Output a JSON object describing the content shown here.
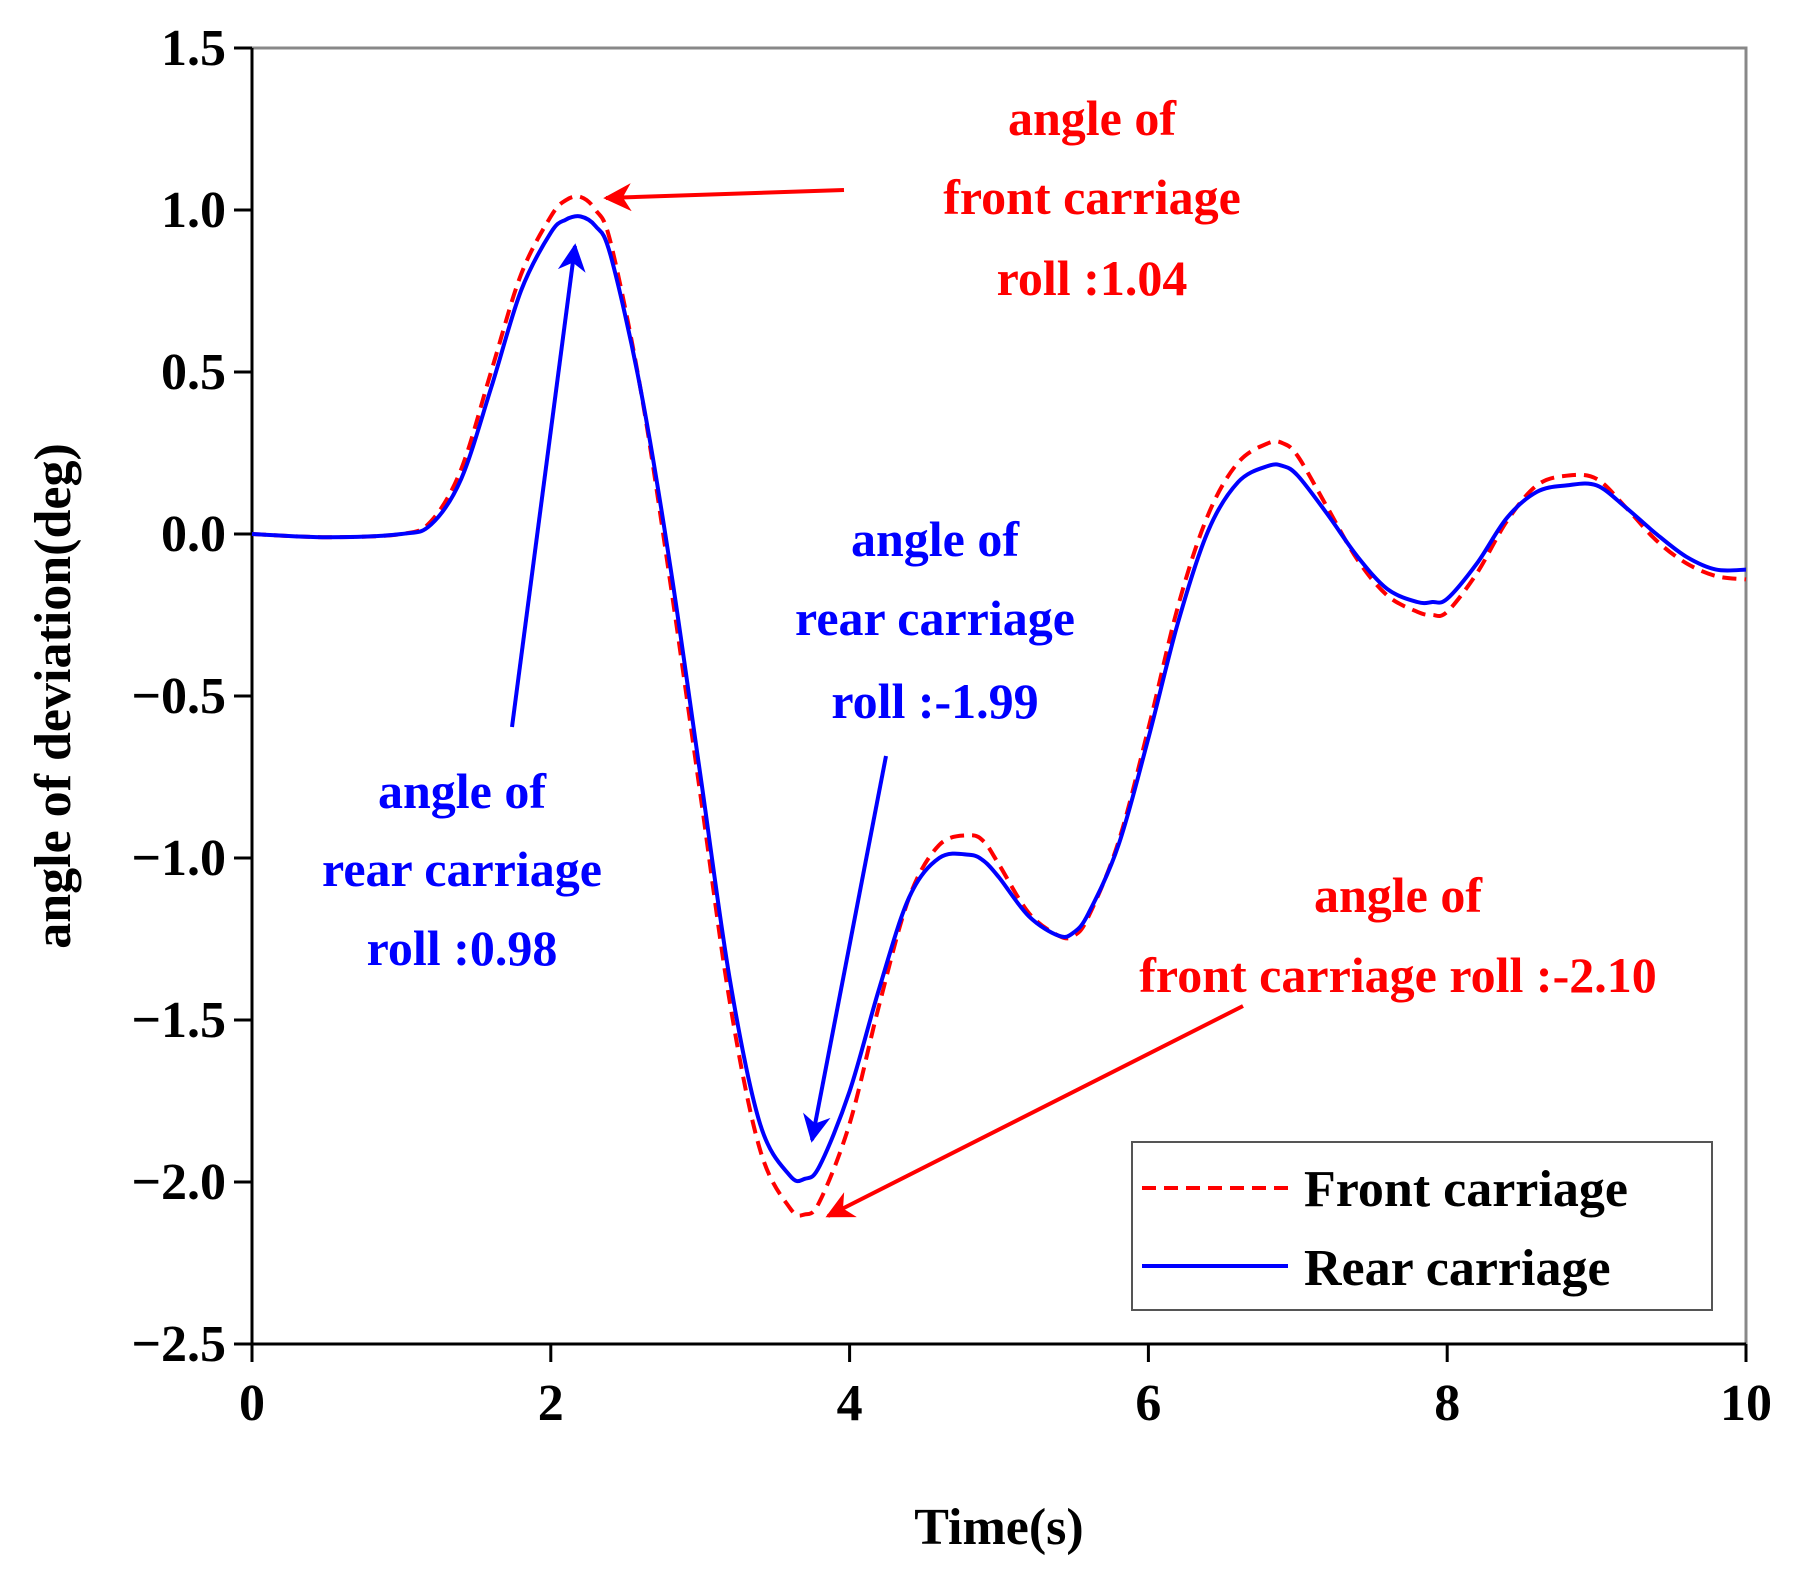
{
  "chart_data": {
    "type": "line",
    "title": "",
    "xlabel": "Time(s)",
    "ylabel": "angle of deviation(deg)",
    "xlim": [
      0,
      10
    ],
    "ylim": [
      -2.5,
      1.5
    ],
    "x_ticks": [
      "0",
      "2",
      "4",
      "6",
      "8",
      "10"
    ],
    "y_ticks": [
      "1.5",
      "1.0",
      "0.5",
      "0.0",
      "−0.5",
      "−1.0",
      "−1.5",
      "−2.0",
      "−2.5"
    ],
    "grid": false,
    "legend_position": "bottom-right",
    "series": [
      {
        "name": "Front carriage",
        "color": "#ff0000",
        "style": "dashed",
        "x": [
          0,
          0.5,
          1.0,
          1.2,
          1.4,
          1.6,
          1.8,
          2.0,
          2.1,
          2.2,
          2.3,
          2.4,
          2.6,
          2.8,
          3.0,
          3.2,
          3.4,
          3.6,
          3.7,
          3.8,
          4.0,
          4.2,
          4.4,
          4.6,
          4.8,
          4.9,
          5.0,
          5.2,
          5.4,
          5.5,
          5.6,
          5.8,
          6.0,
          6.2,
          6.4,
          6.6,
          6.8,
          6.9,
          7.0,
          7.2,
          7.4,
          7.6,
          7.8,
          7.9,
          8.0,
          8.2,
          8.4,
          8.6,
          8.8,
          9.0,
          9.2,
          9.4,
          9.6,
          9.8,
          10.0
        ],
        "values": [
          0,
          -0.01,
          0.0,
          0.04,
          0.2,
          0.5,
          0.8,
          0.98,
          1.03,
          1.04,
          1.0,
          0.9,
          0.45,
          -0.15,
          -0.8,
          -1.45,
          -1.9,
          -2.08,
          -2.1,
          -2.06,
          -1.82,
          -1.45,
          -1.12,
          -0.96,
          -0.93,
          -0.95,
          -1.02,
          -1.17,
          -1.24,
          -1.24,
          -1.18,
          -0.95,
          -0.6,
          -0.22,
          0.06,
          0.22,
          0.28,
          0.28,
          0.24,
          0.08,
          -0.08,
          -0.19,
          -0.24,
          -0.25,
          -0.24,
          -0.12,
          0.04,
          0.15,
          0.18,
          0.17,
          0.08,
          -0.02,
          -0.09,
          -0.13,
          -0.14
        ]
      },
      {
        "name": "Rear carriage",
        "color": "#0000ff",
        "style": "solid",
        "x": [
          0,
          0.5,
          1.0,
          1.2,
          1.4,
          1.6,
          1.8,
          2.0,
          2.1,
          2.2,
          2.3,
          2.4,
          2.6,
          2.8,
          3.0,
          3.2,
          3.4,
          3.6,
          3.7,
          3.8,
          4.0,
          4.2,
          4.4,
          4.6,
          4.8,
          4.9,
          5.0,
          5.2,
          5.4,
          5.5,
          5.6,
          5.8,
          6.0,
          6.2,
          6.4,
          6.6,
          6.8,
          6.9,
          7.0,
          7.2,
          7.4,
          7.6,
          7.8,
          7.9,
          8.0,
          8.2,
          8.4,
          8.6,
          8.8,
          9.0,
          9.2,
          9.4,
          9.6,
          9.8,
          10.0
        ],
        "values": [
          0,
          -0.01,
          0.0,
          0.03,
          0.17,
          0.45,
          0.75,
          0.93,
          0.97,
          0.98,
          0.95,
          0.86,
          0.45,
          -0.1,
          -0.74,
          -1.38,
          -1.82,
          -1.98,
          -1.99,
          -1.95,
          -1.72,
          -1.4,
          -1.12,
          -1.0,
          -0.99,
          -1.01,
          -1.06,
          -1.18,
          -1.24,
          -1.23,
          -1.17,
          -0.96,
          -0.63,
          -0.27,
          0.01,
          0.16,
          0.21,
          0.21,
          0.18,
          0.06,
          -0.07,
          -0.17,
          -0.21,
          -0.21,
          -0.2,
          -0.09,
          0.05,
          0.13,
          0.15,
          0.15,
          0.08,
          0.0,
          -0.07,
          -0.11,
          -0.11
        ]
      }
    ],
    "annotations": [
      {
        "lines": [
          "angle of",
          "front carriage",
          "roll :1.04"
        ],
        "color": "#ff0000",
        "point_x": 2.2,
        "point_y": 1.04
      },
      {
        "lines": [
          "angle of",
          "rear carriage",
          "roll :0.98"
        ],
        "color": "#0000ff",
        "point_x": 2.2,
        "point_y": 0.98
      },
      {
        "lines": [
          "angle of",
          "rear carriage",
          "roll :-1.99"
        ],
        "color": "#0000ff",
        "point_x": 3.7,
        "point_y": -1.99
      },
      {
        "lines": [
          "angle of",
          "front carriage roll :-2.10"
        ],
        "color": "#ff0000",
        "point_x": 3.7,
        "point_y": -2.1
      }
    ]
  }
}
